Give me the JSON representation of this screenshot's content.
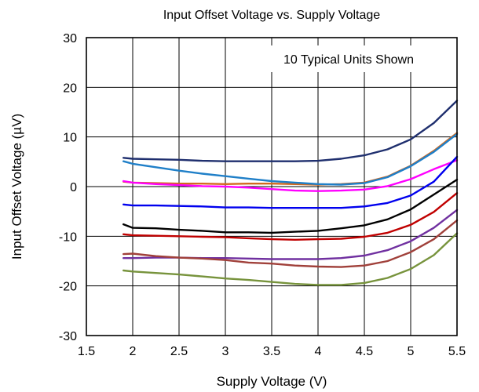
{
  "chart_data": {
    "type": "line",
    "title": "Input Offset Voltage vs. Supply Voltage",
    "xlabel": "Supply Voltage (V)",
    "ylabel": "Input Offset Voltage (µV)",
    "annotation": "10 Typical Units Shown",
    "xlim": [
      1.5,
      5.5
    ],
    "ylim": [
      -30,
      30
    ],
    "xticks": [
      1.5,
      2,
      2.5,
      3,
      3.5,
      4,
      4.5,
      5,
      5.5
    ],
    "xtick_labels": [
      "1.5",
      "2",
      "2.5",
      "3",
      "3.5",
      "4",
      "4.5",
      "5",
      "5.5"
    ],
    "yticks": [
      30,
      20,
      10,
      0,
      -10,
      -20,
      -30
    ],
    "ytick_labels": [
      "30",
      "20",
      "10",
      "0",
      "-10",
      "-20",
      "-30"
    ],
    "grid": true,
    "x": [
      1.9,
      2.0,
      2.25,
      2.5,
      2.75,
      3.0,
      3.25,
      3.5,
      3.75,
      4.0,
      4.25,
      4.5,
      4.75,
      5.0,
      5.25,
      5.5
    ],
    "series": [
      {
        "color": "#1f2f6e",
        "values": [
          5.8,
          5.6,
          5.5,
          5.4,
          5.2,
          5.1,
          5.1,
          5.1,
          5.1,
          5.2,
          5.6,
          6.3,
          7.5,
          9.5,
          12.8,
          17.3
        ]
      },
      {
        "color": "#d2691e",
        "values": [
          1.0,
          0.8,
          0.7,
          0.6,
          0.6,
          0.5,
          0.6,
          0.6,
          0.5,
          0.4,
          0.5,
          0.8,
          2.0,
          4.2,
          7.2,
          10.8
        ]
      },
      {
        "color": "#1f7fc8",
        "values": [
          5.1,
          4.6,
          3.9,
          3.2,
          2.6,
          2.1,
          1.6,
          1.1,
          0.8,
          0.5,
          0.4,
          0.7,
          1.9,
          4.1,
          7.0,
          10.6
        ]
      },
      {
        "color": "#ff00ff",
        "values": [
          1.1,
          0.8,
          0.5,
          0.3,
          0.1,
          0.0,
          -0.2,
          -0.5,
          -0.8,
          -0.9,
          -0.8,
          -0.6,
          0.1,
          1.5,
          3.5,
          5.3
        ]
      },
      {
        "color": "#0000ee",
        "values": [
          -3.6,
          -3.8,
          -3.8,
          -3.9,
          -4.0,
          -4.2,
          -4.2,
          -4.3,
          -4.3,
          -4.3,
          -4.3,
          -4.0,
          -3.3,
          -1.8,
          1.0,
          6.0
        ]
      },
      {
        "color": "#000000",
        "values": [
          -7.6,
          -8.3,
          -8.4,
          -8.7,
          -8.9,
          -9.2,
          -9.2,
          -9.3,
          -9.1,
          -8.9,
          -8.4,
          -7.8,
          -6.6,
          -4.6,
          -1.6,
          1.4
        ]
      },
      {
        "color": "#c00000",
        "values": [
          -9.6,
          -9.8,
          -9.9,
          -10.0,
          -10.1,
          -10.2,
          -10.4,
          -10.6,
          -10.7,
          -10.6,
          -10.5,
          -10.1,
          -9.3,
          -7.7,
          -5.1,
          -1.3
        ]
      },
      {
        "color": "#7030a0",
        "values": [
          -14.4,
          -14.4,
          -14.3,
          -14.3,
          -14.4,
          -14.4,
          -14.5,
          -14.6,
          -14.6,
          -14.6,
          -14.4,
          -13.9,
          -12.8,
          -11.0,
          -8.3,
          -4.7
        ]
      },
      {
        "color": "#a0403a",
        "values": [
          -13.6,
          -13.5,
          -14.0,
          -14.3,
          -14.5,
          -14.8,
          -15.3,
          -15.5,
          -15.9,
          -16.1,
          -16.2,
          -15.9,
          -15.0,
          -13.2,
          -10.6,
          -6.8
        ]
      },
      {
        "color": "#77933c",
        "values": [
          -16.9,
          -17.1,
          -17.4,
          -17.7,
          -18.1,
          -18.5,
          -18.8,
          -19.2,
          -19.6,
          -19.8,
          -19.8,
          -19.4,
          -18.4,
          -16.6,
          -13.8,
          -9.4
        ]
      }
    ]
  }
}
